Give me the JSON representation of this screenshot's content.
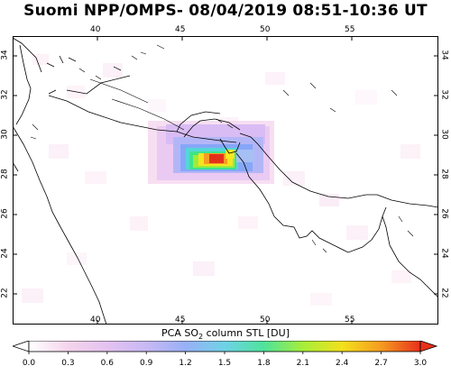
{
  "header": {
    "title": "Suomi NPP/OMPS- 08/04/2019 08:51-10:36 UT"
  },
  "map": {
    "lon_ticks": [
      "40",
      "45",
      "50",
      "55"
    ],
    "lat_ticks": [
      "34",
      "32",
      "30",
      "28",
      "26",
      "24",
      "22"
    ],
    "lon_range": [
      35.5,
      59
    ],
    "lat_range": [
      20.5,
      35
    ],
    "plume_center_lat_lon": [
      28.3,
      47.8
    ],
    "plume_max_du": 3.0
  },
  "colorbar": {
    "label_prefix": "PCA SO",
    "label_sub": "2",
    "label_suffix": " column STL [DU]",
    "ticks": [
      "0.0",
      "0.3",
      "0.6",
      "0.9",
      "1.2",
      "1.5",
      "1.8",
      "2.1",
      "2.4",
      "2.7",
      "3.0"
    ],
    "min": 0.0,
    "max": 3.0,
    "colors": [
      "#ffffff",
      "#f4d4ec",
      "#d9b8f3",
      "#aeb8f7",
      "#7fa9f8",
      "#4fd7d7",
      "#36e16f",
      "#b8f032",
      "#f6e21a",
      "#f49a1e",
      "#e8311b"
    ]
  }
}
